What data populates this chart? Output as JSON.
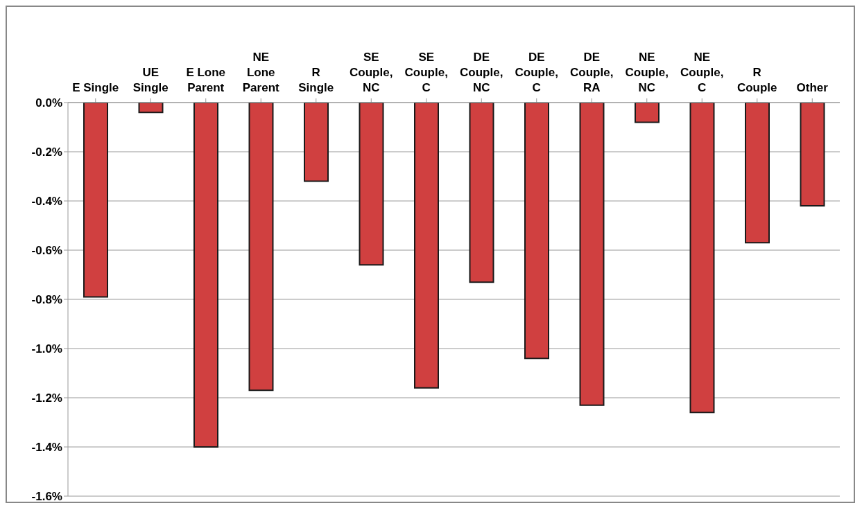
{
  "chart_data": {
    "type": "bar",
    "categories": [
      "E Single",
      "UE\nSingle",
      "E Lone\nParent",
      "NE\nLone\nParent",
      "R\nSingle",
      "SE\nCouple,\nNC",
      "SE\nCouple,\nC",
      "DE\nCouple,\nNC",
      "DE\nCouple,\nC",
      "DE\nCouple,\nRA",
      "NE\nCouple,\nNC",
      "NE\nCouple,\nC",
      "R\nCouple",
      "Other"
    ],
    "values": [
      -0.79,
      -0.04,
      -1.4,
      -1.17,
      -0.32,
      -0.66,
      -1.16,
      -0.73,
      -1.04,
      -1.23,
      -0.08,
      -1.26,
      -0.57,
      -0.42
    ],
    "color": "#d04040",
    "ylim": [
      -1.6,
      0
    ],
    "yticks": [
      {
        "value": 0,
        "label": "0.0%"
      },
      {
        "value": -0.2,
        "label": "-0.2%"
      },
      {
        "value": -0.4,
        "label": "-0.4%"
      },
      {
        "value": -0.6,
        "label": "-0.6%"
      },
      {
        "value": -0.8,
        "label": "-0.8%"
      },
      {
        "value": -1.0,
        "label": "-1.0%"
      },
      {
        "value": -1.2,
        "label": "-1.2%"
      },
      {
        "value": -1.4,
        "label": "-1.4%"
      },
      {
        "value": -1.6,
        "label": "-1.6%"
      }
    ],
    "grid": "y"
  }
}
